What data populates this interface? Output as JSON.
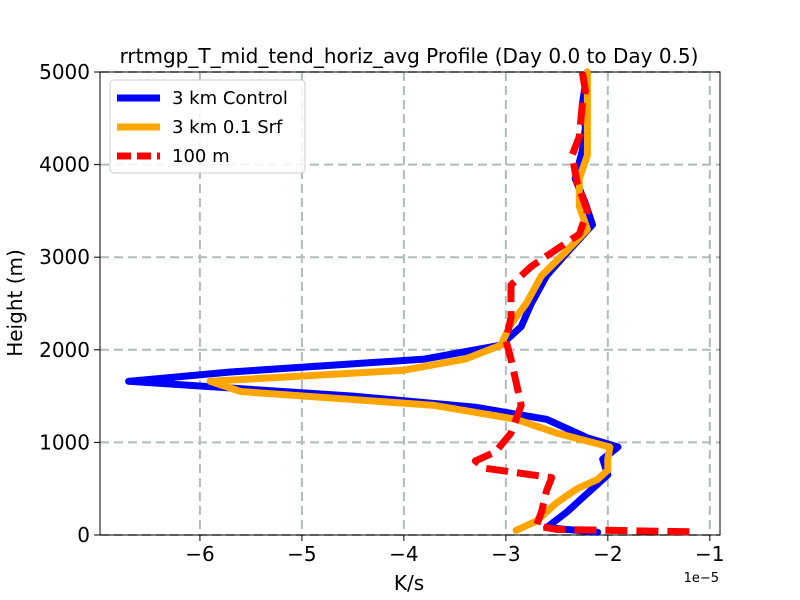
{
  "chart_data": {
    "type": "line",
    "title": "rrtmgp_T_mid_tend_horiz_avg Profile (Day 0.0 to Day 0.5)",
    "xlabel": "K/s",
    "ylabel": "Height (m)",
    "x_offset_label": "1e−5",
    "x_scale": 1e-05,
    "xlim": [
      -6.98,
      -0.9
    ],
    "ylim": [
      0,
      5000
    ],
    "xticks": [
      -6,
      -5,
      -4,
      -3,
      -2,
      -1
    ],
    "xtick_labels": [
      "−6",
      "−5",
      "−4",
      "−3",
      "−2",
      "−1"
    ],
    "yticks": [
      0,
      1000,
      2000,
      3000,
      4000,
      5000
    ],
    "ytick_labels": [
      "0",
      "1000",
      "2000",
      "3000",
      "4000",
      "5000"
    ],
    "grid": true,
    "legend_position": "upper-left",
    "series": [
      {
        "name": "3 km Control",
        "color": "#0000ff",
        "style": "solid",
        "points": [
          [
            -2.1,
            30
          ],
          [
            -2.6,
            80
          ],
          [
            -2.4,
            250
          ],
          [
            -2.2,
            450
          ],
          [
            -2.1,
            550
          ],
          [
            -2.0,
            650
          ],
          [
            -2.05,
            820
          ],
          [
            -1.9,
            950
          ],
          [
            -2.2,
            1050
          ],
          [
            -2.6,
            1250
          ],
          [
            -3.3,
            1380
          ],
          [
            -4.5,
            1500
          ],
          [
            -6.7,
            1660
          ],
          [
            -5.7,
            1760
          ],
          [
            -3.8,
            1900
          ],
          [
            -3.05,
            2050
          ],
          [
            -2.85,
            2250
          ],
          [
            -2.75,
            2500
          ],
          [
            -2.6,
            2800
          ],
          [
            -2.4,
            3050
          ],
          [
            -2.15,
            3350
          ],
          [
            -2.22,
            3580
          ],
          [
            -2.32,
            3850
          ],
          [
            -2.25,
            4150
          ],
          [
            -2.22,
            4400
          ],
          [
            -2.25,
            4650
          ],
          [
            -2.2,
            5000
          ]
        ]
      },
      {
        "name": "3 km 0.1 Srf",
        "color": "#ffa500",
        "style": "solid",
        "points": [
          [
            -2.9,
            50
          ],
          [
            -2.7,
            150
          ],
          [
            -2.5,
            350
          ],
          [
            -2.3,
            500
          ],
          [
            -2.1,
            600
          ],
          [
            -2.0,
            700
          ],
          [
            -2.0,
            820
          ],
          [
            -1.98,
            950
          ],
          [
            -2.5,
            1100
          ],
          [
            -2.9,
            1250
          ],
          [
            -3.7,
            1400
          ],
          [
            -5.6,
            1550
          ],
          [
            -5.9,
            1660
          ],
          [
            -4.0,
            1780
          ],
          [
            -3.4,
            1900
          ],
          [
            -3.05,
            2050
          ],
          [
            -2.95,
            2280
          ],
          [
            -2.8,
            2500
          ],
          [
            -2.65,
            2800
          ],
          [
            -2.42,
            3050
          ],
          [
            -2.2,
            3300
          ],
          [
            -2.28,
            3550
          ],
          [
            -2.28,
            3850
          ],
          [
            -2.2,
            4100
          ],
          [
            -2.2,
            4400
          ],
          [
            -2.2,
            4700
          ],
          [
            -2.2,
            5000
          ]
        ]
      },
      {
        "name": "100 m",
        "color": "#ff0000",
        "style": "dashed",
        "points": [
          [
            -1.2,
            35
          ],
          [
            -2.5,
            60
          ],
          [
            -2.7,
            100
          ],
          [
            -2.65,
            250
          ],
          [
            -2.6,
            480
          ],
          [
            -2.55,
            620
          ],
          [
            -3.2,
            720
          ],
          [
            -3.3,
            800
          ],
          [
            -3.1,
            900
          ],
          [
            -2.95,
            1100
          ],
          [
            -2.85,
            1400
          ],
          [
            -2.9,
            1650
          ],
          [
            -2.95,
            1900
          ],
          [
            -3.0,
            2100
          ],
          [
            -2.95,
            2350
          ],
          [
            -2.95,
            2700
          ],
          [
            -2.75,
            2900
          ],
          [
            -2.55,
            3050
          ],
          [
            -2.28,
            3250
          ],
          [
            -2.2,
            3500
          ],
          [
            -2.3,
            3800
          ],
          [
            -2.35,
            4100
          ],
          [
            -2.28,
            4300
          ],
          [
            -2.25,
            4650
          ],
          [
            -2.22,
            4800
          ],
          [
            -2.25,
            5000
          ]
        ]
      }
    ]
  }
}
